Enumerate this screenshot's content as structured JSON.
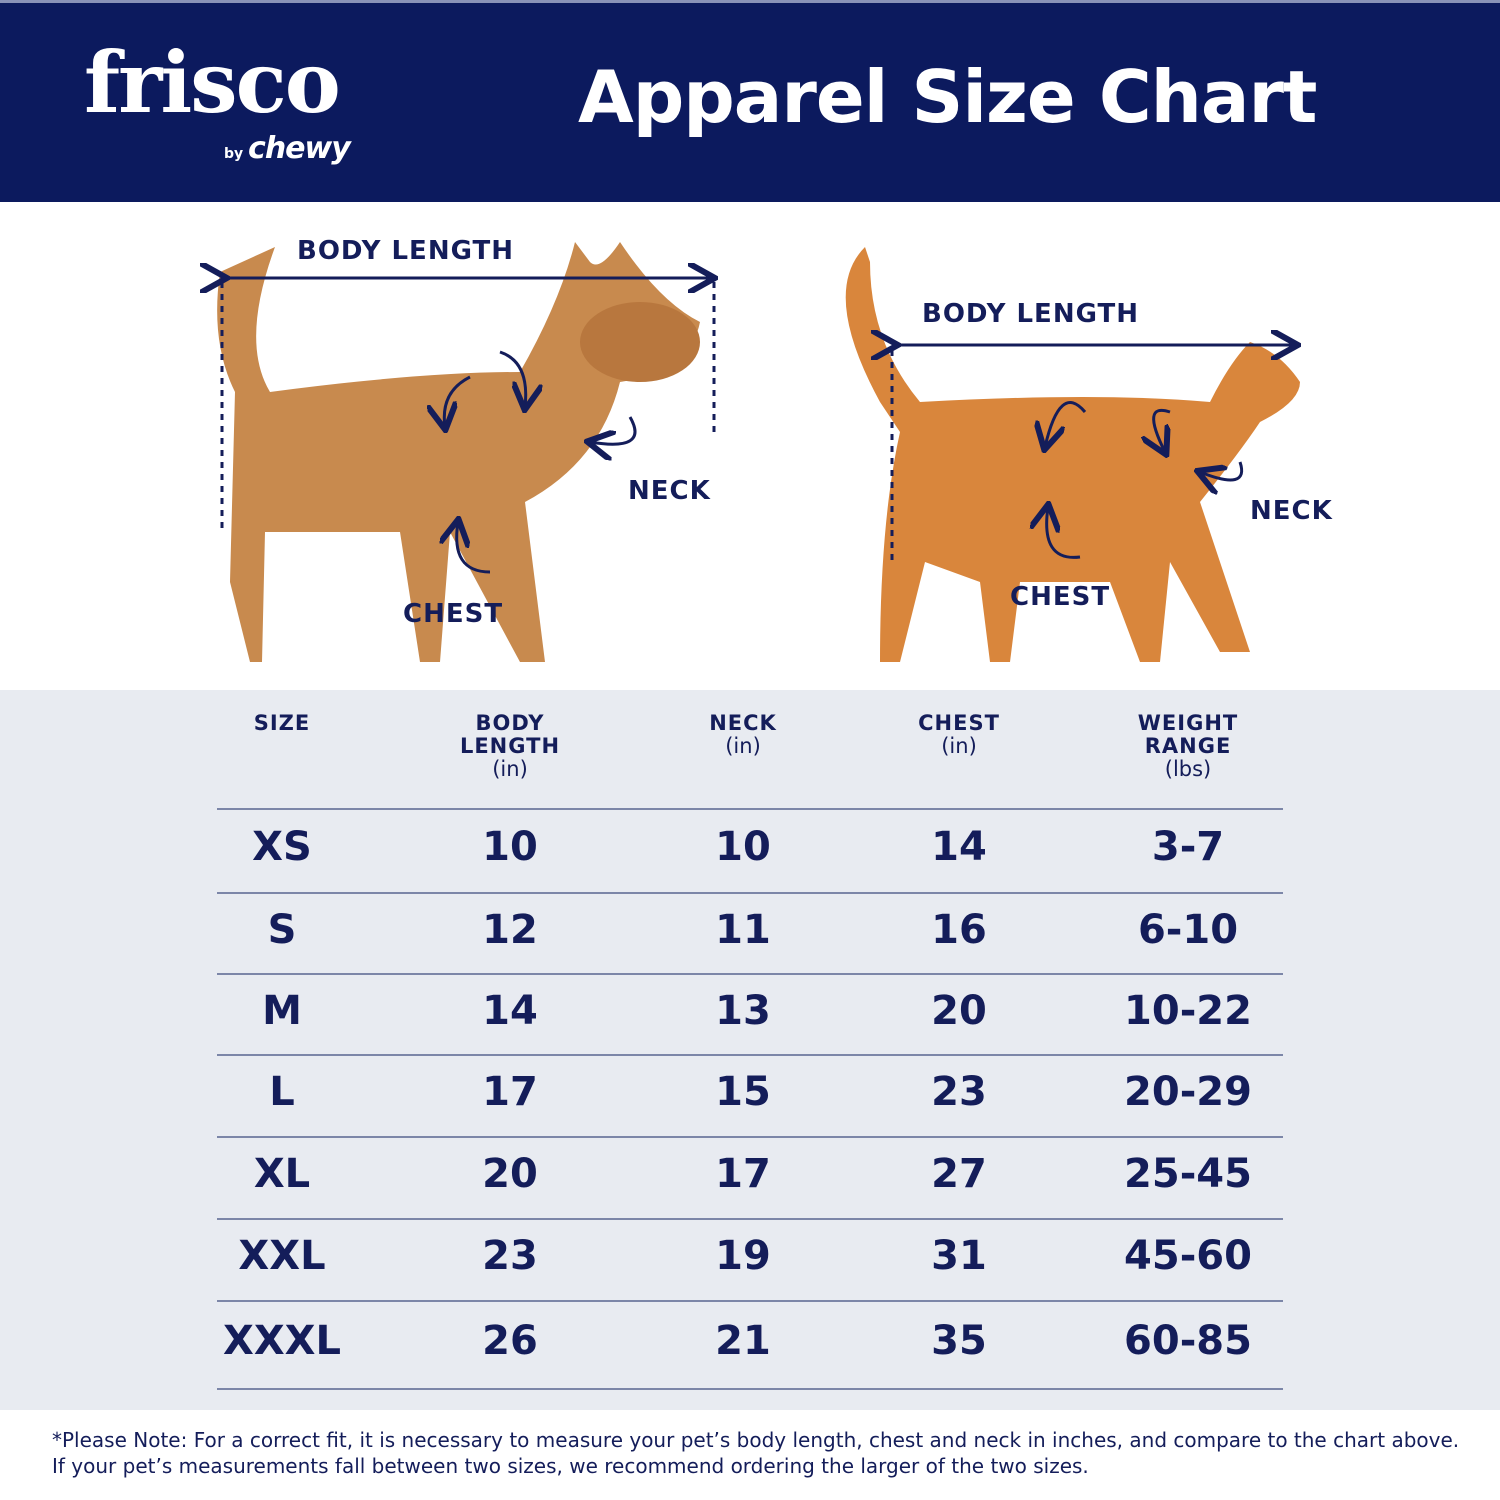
{
  "header": {
    "logo_text": "frisco",
    "logo_sub": "by",
    "logo_sub_brand": "chewy",
    "title": "Apparel Size Chart",
    "bg_color": "#0c1a5e"
  },
  "diagram": {
    "dog": {
      "body_length": "BODY LENGTH",
      "neck": "NECK",
      "chest": "CHEST"
    },
    "cat": {
      "body_length": "BODY LENGTH",
      "neck": "NECK",
      "chest": "CHEST"
    }
  },
  "table": {
    "headers": [
      {
        "label": "SIZE",
        "unit": ""
      },
      {
        "label": "BODY LENGTH",
        "unit": "(in)"
      },
      {
        "label": "NECK",
        "unit": "(in)"
      },
      {
        "label": "CHEST",
        "unit": "(in)"
      },
      {
        "label": "WEIGHT RANGE",
        "unit": "(lbs)"
      }
    ],
    "rows": [
      [
        "XS",
        "10",
        "10",
        "14",
        "3-7"
      ],
      [
        "S",
        "12",
        "11",
        "16",
        "6-10"
      ],
      [
        "M",
        "14",
        "13",
        "20",
        "10-22"
      ],
      [
        "L",
        "17",
        "15",
        "23",
        "20-29"
      ],
      [
        "XL",
        "20",
        "17",
        "27",
        "25-45"
      ],
      [
        "XXL",
        "23",
        "19",
        "31",
        "45-60"
      ],
      [
        "XXXL",
        "26",
        "21",
        "35",
        "60-85"
      ]
    ]
  },
  "footer": {
    "note": "*Please Note: For a correct fit, it is necessary to measure your pet’s body length, chest and neck in inches, and compare to the chart above. If your pet’s measurements fall between two sizes, we recommend ordering the larger of the two sizes."
  }
}
